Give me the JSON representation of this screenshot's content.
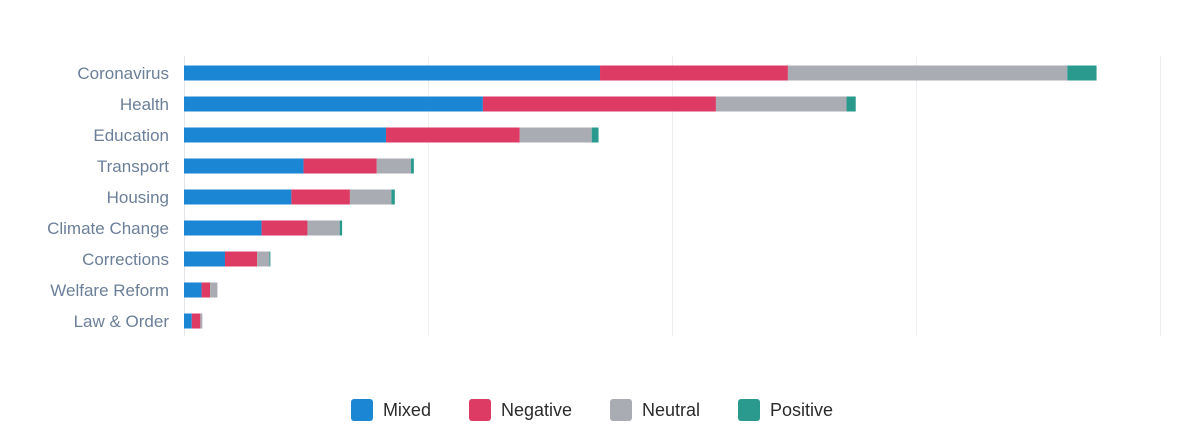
{
  "chart_data": {
    "type": "bar",
    "orientation": "horizontal",
    "stacked": true,
    "categories": [
      "Coronavirus",
      "Health",
      "Education",
      "Transport",
      "Housing",
      "Climate Change",
      "Corrections",
      "Welfare Reform",
      "Law & Order"
    ],
    "series": [
      {
        "name": "Mixed",
        "color": "#1b87d4",
        "values": [
          1705,
          1225,
          828,
          490,
          440,
          318,
          168,
          72,
          32
        ]
      },
      {
        "name": "Negative",
        "color": "#dd3a64",
        "values": [
          770,
          955,
          548,
          300,
          240,
          188,
          132,
          35,
          35
        ]
      },
      {
        "name": "Neutral",
        "color": "#a9adb3",
        "values": [
          1145,
          535,
          295,
          140,
          170,
          132,
          50,
          30,
          8
        ]
      },
      {
        "name": "Positive",
        "color": "#2a9a8e",
        "values": [
          120,
          38,
          28,
          12,
          14,
          10,
          4,
          0,
          0
        ]
      }
    ],
    "xlim": [
      0,
      4000
    ],
    "grid": true,
    "legend_position": "bottom",
    "title": "",
    "xlabel": "",
    "ylabel": ""
  }
}
